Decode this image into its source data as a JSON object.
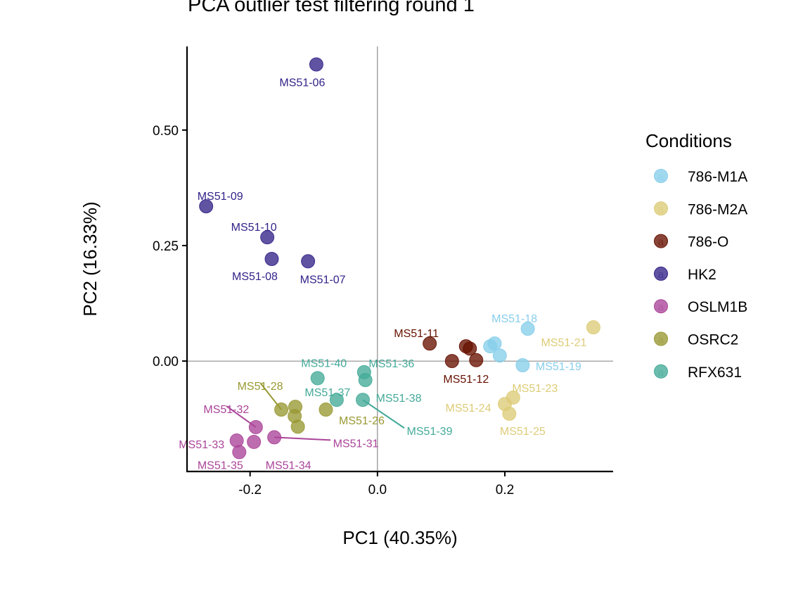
{
  "chart_data": {
    "type": "scatter",
    "title": "PCA outlier test filtering round  1",
    "xlabel": "PC1 (40.35%)",
    "ylabel": "PC2 (16.33%)",
    "xlim": [
      -0.299,
      0.37
    ],
    "ylim": [
      -0.239,
      0.681
    ],
    "xticks": [
      -0.2,
      0.0,
      0.2
    ],
    "xtick_labels": [
      "-0.2",
      "0.0",
      "0.2"
    ],
    "yticks": [
      0.0,
      0.25,
      0.5
    ],
    "ytick_labels": [
      "0.00",
      "0.25",
      "0.50"
    ],
    "reference_lines": {
      "x": 0,
      "y": 0
    },
    "grid": false,
    "legend": {
      "title": "Conditions",
      "position": "right",
      "entries": [
        {
          "name": "786-M1A",
          "color": "#87CEEB"
        },
        {
          "name": "786-M2A",
          "color": "#DDCC77"
        },
        {
          "name": "786-O",
          "color": "#661100"
        },
        {
          "name": "HK2",
          "color": "#332288"
        },
        {
          "name": "OSLM1B",
          "color": "#AA4499"
        },
        {
          "name": "OSRC2",
          "color": "#999933"
        },
        {
          "name": "RFX631",
          "color": "#44AA99"
        }
      ]
    },
    "series": [
      {
        "name": "HK2",
        "points": [
          {
            "x": -0.096,
            "y": 0.642,
            "label": "MS51-06"
          },
          {
            "x": -0.269,
            "y": 0.335,
            "label": "MS51-09"
          },
          {
            "x": -0.173,
            "y": 0.268,
            "label": "MS51-10"
          },
          {
            "x": -0.166,
            "y": 0.221,
            "label": "MS51-08"
          },
          {
            "x": -0.109,
            "y": 0.216,
            "label": "MS51-07"
          }
        ]
      },
      {
        "name": "786-O",
        "points": [
          {
            "x": 0.082,
            "y": 0.038,
            "label": "MS51-11"
          },
          {
            "x": 0.139,
            "y": 0.032,
            "label": ""
          },
          {
            "x": 0.145,
            "y": 0.027,
            "label": ""
          },
          {
            "x": 0.117,
            "y": 0.0,
            "label": "MS51-12"
          },
          {
            "x": 0.155,
            "y": 0.002,
            "label": ""
          }
        ]
      },
      {
        "name": "786-M1A",
        "points": [
          {
            "x": 0.236,
            "y": 0.07,
            "label": "MS51-18"
          },
          {
            "x": 0.177,
            "y": 0.032,
            "label": ""
          },
          {
            "x": 0.184,
            "y": 0.038,
            "label": ""
          },
          {
            "x": 0.192,
            "y": 0.012,
            "label": ""
          },
          {
            "x": 0.228,
            "y": -0.009,
            "label": "MS51-19"
          }
        ]
      },
      {
        "name": "786-M2A",
        "points": [
          {
            "x": 0.339,
            "y": 0.073,
            "label": "MS51-21"
          },
          {
            "x": 0.213,
            "y": -0.079,
            "label": "MS51-23"
          },
          {
            "x": 0.2,
            "y": -0.093,
            "label": "MS51-24"
          },
          {
            "x": 0.207,
            "y": -0.114,
            "label": "MS51-25"
          }
        ]
      },
      {
        "name": "RFX631",
        "points": [
          {
            "x": -0.094,
            "y": -0.037,
            "label": "MS51-40"
          },
          {
            "x": -0.021,
            "y": -0.024,
            "label": "MS51-36"
          },
          {
            "x": -0.019,
            "y": -0.041,
            "label": ""
          },
          {
            "x": -0.064,
            "y": -0.084,
            "label": "MS51-37"
          },
          {
            "x": -0.023,
            "y": -0.084,
            "label": "MS51-38"
          },
          {
            "x": -0.023,
            "y": -0.084,
            "label": "MS51-39"
          }
        ]
      },
      {
        "name": "OSRC2",
        "points": [
          {
            "x": -0.081,
            "y": -0.105,
            "label": "MS51-26"
          },
          {
            "x": -0.151,
            "y": -0.105,
            "label": "MS51-28"
          },
          {
            "x": -0.129,
            "y": -0.099,
            "label": ""
          },
          {
            "x": -0.13,
            "y": -0.119,
            "label": ""
          },
          {
            "x": -0.125,
            "y": -0.142,
            "label": ""
          }
        ]
      },
      {
        "name": "OSLM1B",
        "points": [
          {
            "x": -0.191,
            "y": -0.143,
            "label": "MS51-32"
          },
          {
            "x": -0.221,
            "y": -0.172,
            "label": "MS51-33"
          },
          {
            "x": -0.194,
            "y": -0.175,
            "label": ""
          },
          {
            "x": -0.217,
            "y": -0.197,
            "label": "MS51-35"
          },
          {
            "x": -0.162,
            "y": -0.165,
            "label": "MS51-31"
          },
          {
            "x": -0.162,
            "y": -0.165,
            "label": "MS51-34"
          }
        ]
      }
    ]
  }
}
